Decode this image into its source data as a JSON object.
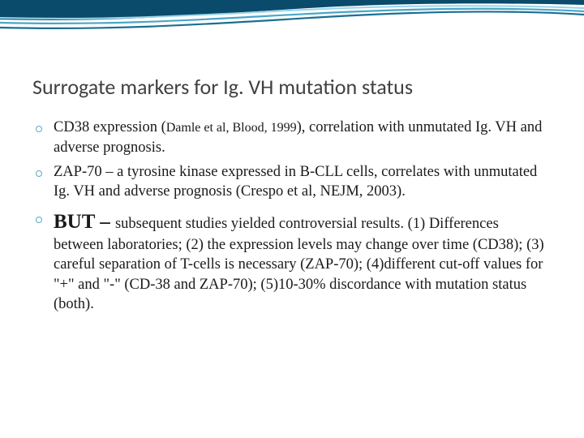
{
  "slide": {
    "title": "Surrogate markers for Ig. VH mutation status",
    "title_fontsize": 26,
    "title_color": "#404040",
    "text_color": "#1a1a1a",
    "background_color": "#ffffff"
  },
  "wave": {
    "top_band_color": "#0a4a6b",
    "accent_light": "#9ad4e8",
    "accent_mid": "#4aa6c7",
    "accent_dark": "#1b6f92",
    "stroke_width": 2
  },
  "bullets": [
    {
      "marker_color": "#5da9c5",
      "lead": "CD38 expression (",
      "ref": "Damle et al, Blood, 1999",
      "tail": "), correlation with unmutated Ig. VH and adverse prognosis."
    },
    {
      "marker_color": "#5da9c5",
      "text": "ZAP-70 – a tyrosine kinase expressed in B-CLL cells, correlates with unmutated Ig. VH and adverse prognosis (Crespo et al, NEJM, 2003)."
    },
    {
      "marker_color": "#5da9c5",
      "but": "BUT – ",
      "sub": "subsequent studies yielded controversial results. (1) Differences between laboratories; (2) the expression levels may change over time (CD38); (3) careful separation of T-cells is necessary (ZAP-70); (4)different cut-off values for \"+\" and \"-\" (CD-38 and ZAP-70); (5)10-30% discordance with mutation status (both)."
    }
  ]
}
